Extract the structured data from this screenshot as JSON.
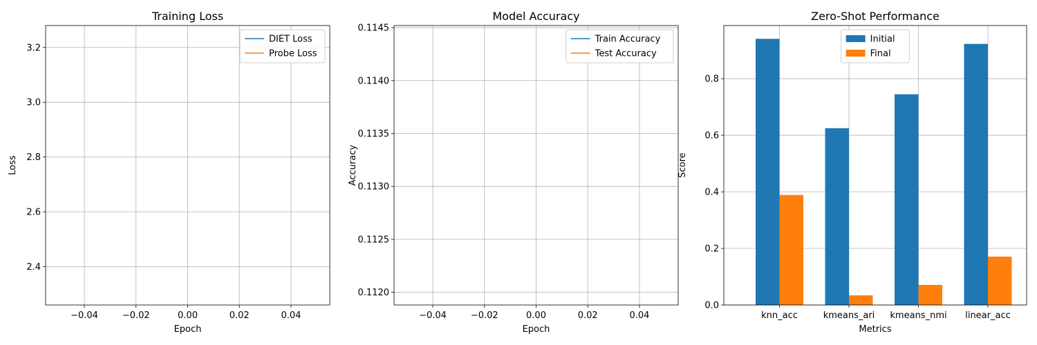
{
  "chart_data": [
    {
      "type": "line",
      "title": "Training Loss",
      "xlabel": "Epoch",
      "ylabel": "Loss",
      "xlim": [
        -0.055,
        0.055
      ],
      "ylim": [
        2.26,
        3.28
      ],
      "xticks": [
        "-0.04",
        "-0.02",
        "0.00",
        "0.02",
        "0.04"
      ],
      "yticks": [
        "2.4",
        "2.6",
        "2.8",
        "3.0",
        "3.2"
      ],
      "grid": true,
      "legend_position": "upper-right",
      "series": [
        {
          "name": "DIET Loss",
          "color": "#1f77b4",
          "x": [],
          "y": []
        },
        {
          "name": "Probe Loss",
          "color": "#ff7f0e",
          "x": [],
          "y": []
        }
      ]
    },
    {
      "type": "line",
      "title": "Model Accuracy",
      "xlabel": "Epoch",
      "ylabel": "Accuracy",
      "xlim": [
        -0.055,
        0.055
      ],
      "ylim": [
        0.11188,
        0.11452
      ],
      "xticks": [
        "-0.04",
        "-0.02",
        "0.00",
        "0.02",
        "0.04"
      ],
      "yticks": [
        "0.1120",
        "0.1125",
        "0.1130",
        "0.1135",
        "0.1140",
        "0.1145"
      ],
      "grid": true,
      "legend_position": "upper-right",
      "series": [
        {
          "name": "Train Accuracy",
          "color": "#1f77b4",
          "x": [],
          "y": []
        },
        {
          "name": "Test Accuracy",
          "color": "#ff7f0e",
          "x": [],
          "y": []
        }
      ]
    },
    {
      "type": "bar",
      "title": "Zero-Shot Performance",
      "xlabel": "Metrics",
      "ylabel": "Score",
      "ylim": [
        0,
        0.988
      ],
      "yticks": [
        "0.0",
        "0.2",
        "0.4",
        "0.6",
        "0.8"
      ],
      "grid": true,
      "legend_position": "upper-center",
      "categories": [
        "knn_acc",
        "kmeans_ari",
        "kmeans_nmi",
        "linear_acc"
      ],
      "series": [
        {
          "name": "Initial",
          "color": "#1f77b4",
          "values": [
            0.941,
            0.625,
            0.745,
            0.923
          ]
        },
        {
          "name": "Final",
          "color": "#ff7f0e",
          "values": [
            0.389,
            0.034,
            0.071,
            0.171
          ]
        }
      ]
    }
  ]
}
